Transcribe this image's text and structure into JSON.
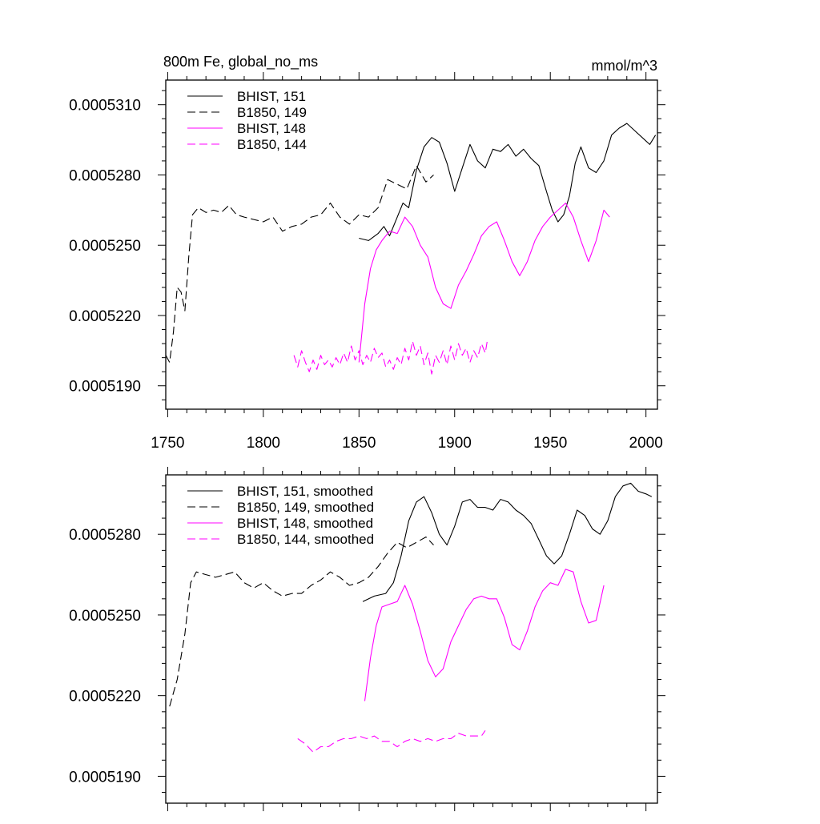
{
  "title_left": "800m Fe, global_no_ms",
  "title_right": "mmol/m^3",
  "colors": {
    "black": "#000000",
    "magenta": "#ff00ff"
  },
  "chart_data": [
    {
      "type": "line",
      "title": "800m Fe, global_no_ms",
      "units": "mmol/m^3",
      "xlim": [
        1749,
        2006
      ],
      "ylim": [
        0.000518,
        0.00053205
      ],
      "x_ticks": [
        1750,
        1800,
        1850,
        1900,
        1950,
        2000
      ],
      "x_tick_labels": [
        "1750",
        "1800",
        "1850",
        "1900",
        "1950",
        "2000"
      ],
      "y_ticks": [
        0.000519,
        0.000522,
        0.000525,
        0.000528,
        0.000531
      ],
      "y_tick_labels": [
        "0.0005190",
        "0.0005220",
        "0.0005250",
        "0.0005280",
        "0.0005310"
      ],
      "legend_position": "top-left",
      "series": [
        {
          "name": "BHIST, 151",
          "color": "#000000",
          "dash": "solid",
          "x": [
            1850,
            1855,
            1860,
            1863,
            1866,
            1870,
            1873,
            1876,
            1880,
            1884,
            1888,
            1892,
            1896,
            1900,
            1904,
            1908,
            1912,
            1916,
            1920,
            1924,
            1928,
            1932,
            1936,
            1940,
            1944,
            1948,
            1951,
            1954,
            1957,
            1960,
            1963,
            1966,
            1970,
            1974,
            1978,
            1982,
            1986,
            1990,
            1994,
            1998,
            2002,
            2005
          ],
          "y": [
            0.0005253,
            0.0005252,
            0.0005255,
            0.0005258,
            0.0005254,
            0.0005262,
            0.0005268,
            0.0005266,
            0.0005282,
            0.0005292,
            0.0005296,
            0.0005294,
            0.0005285,
            0.0005273,
            0.0005283,
            0.0005293,
            0.0005286,
            0.0005283,
            0.0005291,
            0.000529,
            0.0005293,
            0.0005288,
            0.0005291,
            0.0005287,
            0.0005284,
            0.0005273,
            0.0005265,
            0.000526,
            0.0005263,
            0.0005271,
            0.0005285,
            0.0005292,
            0.0005283,
            0.0005281,
            0.0005286,
            0.0005297,
            0.00053,
            0.0005302,
            0.0005299,
            0.0005296,
            0.0005293,
            0.0005297
          ]
        },
        {
          "name": "B1850, 149",
          "color": "#000000",
          "dash": "dashed",
          "x": [
            1749,
            1751,
            1753,
            1755,
            1757,
            1759,
            1761,
            1763,
            1766,
            1770,
            1774,
            1778,
            1782,
            1786,
            1790,
            1795,
            1800,
            1805,
            1810,
            1815,
            1820,
            1825,
            1830,
            1835,
            1840,
            1845,
            1850,
            1855,
            1860,
            1865,
            1870,
            1875,
            1880,
            1885,
            1889
          ],
          "y": [
            0.0005203,
            0.00052,
            0.0005213,
            0.0005232,
            0.000523,
            0.0005222,
            0.0005245,
            0.0005263,
            0.0005266,
            0.0005264,
            0.0005265,
            0.0005264,
            0.0005267,
            0.0005263,
            0.0005262,
            0.0005261,
            0.000526,
            0.0005262,
            0.0005256,
            0.0005258,
            0.0005259,
            0.0005262,
            0.0005263,
            0.0005268,
            0.0005262,
            0.0005259,
            0.0005263,
            0.0005262,
            0.0005266,
            0.0005278,
            0.0005276,
            0.0005274,
            0.0005284,
            0.0005277,
            0.000528
          ]
        },
        {
          "name": "BHIST, 148",
          "color": "#ff00ff",
          "dash": "solid",
          "x": [
            1850,
            1853,
            1856,
            1859,
            1862,
            1866,
            1870,
            1874,
            1878,
            1882,
            1886,
            1890,
            1894,
            1898,
            1902,
            1906,
            1910,
            1914,
            1918,
            1922,
            1926,
            1930,
            1934,
            1938,
            1942,
            1946,
            1950,
            1954,
            1958,
            1962,
            1966,
            1970,
            1974,
            1978,
            1981
          ],
          "y": [
            0.00052,
            0.0005225,
            0.000524,
            0.0005248,
            0.0005252,
            0.0005256,
            0.0005255,
            0.0005262,
            0.0005258,
            0.000525,
            0.0005245,
            0.0005232,
            0.0005225,
            0.0005223,
            0.0005233,
            0.0005239,
            0.0005246,
            0.0005254,
            0.0005258,
            0.000526,
            0.0005252,
            0.0005243,
            0.0005237,
            0.0005243,
            0.0005252,
            0.0005258,
            0.0005262,
            0.0005265,
            0.0005268,
            0.0005262,
            0.0005252,
            0.0005243,
            0.0005252,
            0.0005265,
            0.0005262
          ]
        },
        {
          "name": "B1850, 144",
          "color": "#ff00ff",
          "dash": "dashed",
          "x": [
            1816,
            1818,
            1820,
            1822,
            1824,
            1826,
            1828,
            1830,
            1832,
            1834,
            1836,
            1838,
            1840,
            1842,
            1844,
            1846,
            1848,
            1850,
            1852,
            1854,
            1856,
            1858,
            1860,
            1862,
            1864,
            1866,
            1868,
            1870,
            1872,
            1874,
            1876,
            1878,
            1880,
            1882,
            1884,
            1886,
            1888,
            1890,
            1892,
            1894,
            1896,
            1898,
            1900,
            1902,
            1904,
            1906,
            1908,
            1910,
            1912,
            1914,
            1916,
            1917
          ],
          "y": [
            0.0005203,
            0.0005198,
            0.0005205,
            0.00052,
            0.0005196,
            0.0005201,
            0.0005197,
            0.0005203,
            0.0005199,
            0.0005201,
            0.0005198,
            0.0005202,
            0.0005199,
            0.0005204,
            0.00052,
            0.0005207,
            0.0005201,
            0.0005205,
            0.0005199,
            0.0005203,
            0.00052,
            0.0005206,
            0.0005202,
            0.0005204,
            0.0005198,
            0.0005201,
            0.0005197,
            0.0005202,
            0.0005199,
            0.0005206,
            0.0005201,
            0.0005209,
            0.0005203,
            0.0005207,
            0.0005199,
            0.0005204,
            0.0005195,
            0.0005203,
            0.00052,
            0.0005205,
            0.0005199,
            0.0005207,
            0.0005201,
            0.0005208,
            0.0005203,
            0.0005206,
            0.00052,
            0.0005205,
            0.0005202,
            0.0005208,
            0.0005204,
            0.0005209
          ]
        }
      ]
    },
    {
      "type": "line",
      "xlim": [
        1749,
        2006
      ],
      "ylim": [
        0.000518,
        0.00053021
      ],
      "x_ticks": [
        1750,
        1800,
        1850,
        1900,
        1950,
        2000
      ],
      "y_ticks": [
        0.000519,
        0.000522,
        0.000525,
        0.000528
      ],
      "y_tick_labels": [
        "0.0005190",
        "0.0005220",
        "0.0005250",
        "0.0005280"
      ],
      "legend_position": "top-left",
      "series": [
        {
          "name": "BHIST, 151, smoothed",
          "color": "#000000",
          "dash": "solid",
          "x": [
            1852,
            1858,
            1864,
            1868,
            1872,
            1876,
            1880,
            1884,
            1888,
            1892,
            1896,
            1900,
            1904,
            1908,
            1912,
            1916,
            1920,
            1924,
            1928,
            1932,
            1936,
            1940,
            1944,
            1948,
            1952,
            1956,
            1960,
            1964,
            1968,
            1972,
            1976,
            1980,
            1984,
            1988,
            1992,
            1996,
            2000,
            2003
          ],
          "y": [
            0.0005255,
            0.0005257,
            0.0005258,
            0.0005262,
            0.0005272,
            0.0005285,
            0.0005292,
            0.0005294,
            0.0005288,
            0.000528,
            0.0005276,
            0.0005283,
            0.0005292,
            0.0005293,
            0.000529,
            0.000529,
            0.0005289,
            0.0005293,
            0.0005292,
            0.0005289,
            0.0005287,
            0.0005284,
            0.0005278,
            0.0005272,
            0.0005269,
            0.0005272,
            0.000528,
            0.0005289,
            0.0005287,
            0.0005282,
            0.000528,
            0.0005285,
            0.0005294,
            0.0005298,
            0.0005299,
            0.0005296,
            0.0005295,
            0.0005294
          ]
        },
        {
          "name": "B1850, 149, smoothed",
          "color": "#000000",
          "dash": "dashed",
          "x": [
            1751,
            1755,
            1759,
            1762,
            1765,
            1770,
            1775,
            1780,
            1785,
            1790,
            1795,
            1800,
            1805,
            1810,
            1815,
            1820,
            1825,
            1830,
            1835,
            1840,
            1845,
            1850,
            1855,
            1860,
            1865,
            1870,
            1875,
            1880,
            1885,
            1889
          ],
          "y": [
            0.0005216,
            0.0005226,
            0.0005243,
            0.0005262,
            0.0005266,
            0.0005265,
            0.0005264,
            0.0005265,
            0.0005266,
            0.0005262,
            0.000526,
            0.0005262,
            0.0005259,
            0.0005257,
            0.0005258,
            0.0005258,
            0.0005261,
            0.0005263,
            0.0005266,
            0.0005264,
            0.0005261,
            0.0005262,
            0.0005264,
            0.0005268,
            0.0005273,
            0.0005277,
            0.0005275,
            0.0005277,
            0.0005279,
            0.0005276
          ]
        },
        {
          "name": "BHIST, 148, smoothed",
          "color": "#ff00ff",
          "dash": "solid",
          "x": [
            1853,
            1856,
            1859,
            1862,
            1866,
            1870,
            1874,
            1878,
            1882,
            1886,
            1890,
            1894,
            1898,
            1902,
            1906,
            1910,
            1914,
            1918,
            1922,
            1926,
            1930,
            1934,
            1938,
            1942,
            1946,
            1950,
            1954,
            1958,
            1962,
            1966,
            1970,
            1974,
            1978
          ],
          "y": [
            0.0005218,
            0.0005234,
            0.0005246,
            0.0005253,
            0.0005254,
            0.0005255,
            0.0005261,
            0.0005254,
            0.0005244,
            0.0005233,
            0.0005227,
            0.000523,
            0.000524,
            0.0005246,
            0.0005252,
            0.0005256,
            0.0005257,
            0.0005256,
            0.0005256,
            0.0005249,
            0.0005239,
            0.0005237,
            0.0005244,
            0.0005253,
            0.0005259,
            0.0005262,
            0.0005261,
            0.0005267,
            0.0005266,
            0.0005255,
            0.0005247,
            0.0005248,
            0.0005261
          ]
        },
        {
          "name": "B1850, 144, smoothed",
          "color": "#ff00ff",
          "dash": "dashed",
          "x": [
            1818,
            1822,
            1826,
            1830,
            1834,
            1838,
            1842,
            1846,
            1850,
            1854,
            1858,
            1862,
            1866,
            1870,
            1874,
            1878,
            1882,
            1886,
            1890,
            1894,
            1898,
            1902,
            1906,
            1910,
            1914,
            1916
          ],
          "y": [
            0.0005204,
            0.0005202,
            0.0005199,
            0.0005201,
            0.0005201,
            0.0005203,
            0.0005204,
            0.0005204,
            0.0005205,
            0.0005204,
            0.0005205,
            0.0005203,
            0.0005203,
            0.0005201,
            0.0005203,
            0.0005204,
            0.0005203,
            0.0005204,
            0.0005203,
            0.0005204,
            0.0005204,
            0.0005206,
            0.0005205,
            0.0005205,
            0.0005205,
            0.0005207
          ]
        }
      ]
    }
  ]
}
